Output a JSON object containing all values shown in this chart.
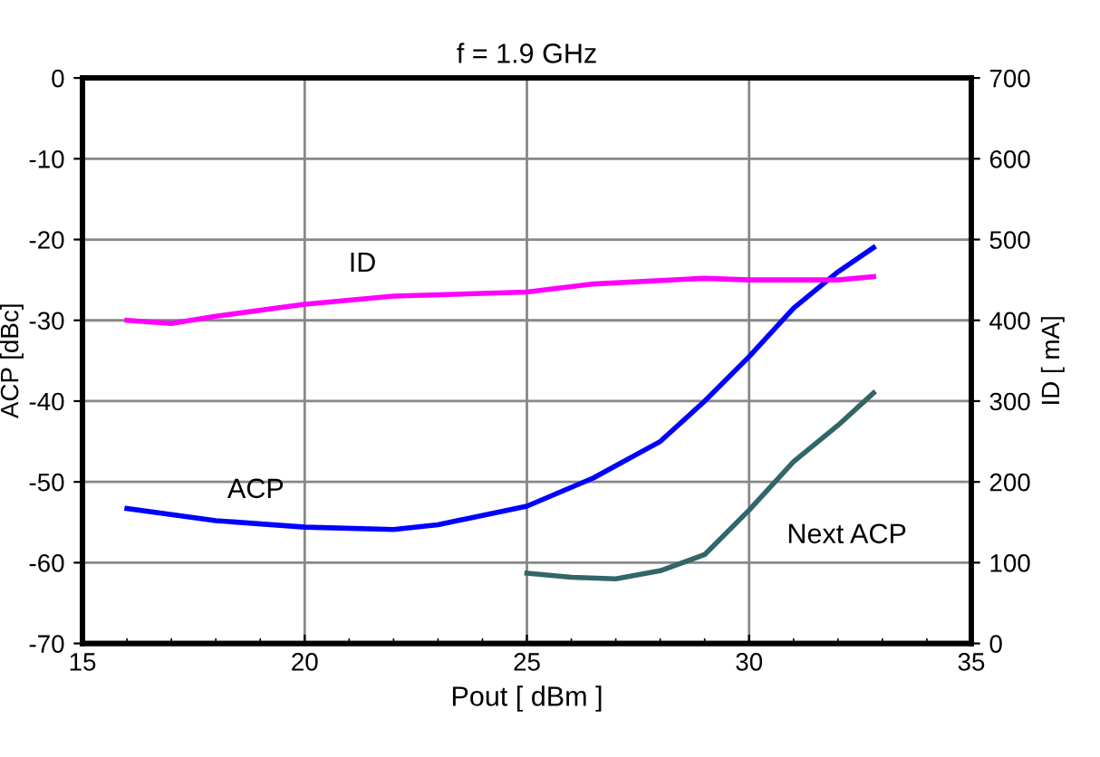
{
  "chart_data": {
    "type": "line",
    "title": "f = 1.9 GHz",
    "xlabel": "Pout [ dBm ]",
    "ylabel": "ACP [dBc]",
    "y2label": "ID [ mA]",
    "xlim": [
      15,
      35
    ],
    "xticks": [
      15,
      20,
      25,
      30,
      35
    ],
    "ylim": [
      -70,
      0
    ],
    "yticks": [
      -70,
      -60,
      -50,
      -40,
      -30,
      -20,
      -10,
      0
    ],
    "y2lim": [
      0,
      700
    ],
    "y2ticks": [
      0,
      100,
      200,
      300,
      400,
      500,
      600,
      700
    ],
    "grid": true,
    "series": [
      {
        "name": "ID",
        "color": "#ff00ff",
        "axis": "y2",
        "x": [
          16,
          17,
          18,
          20,
          22,
          25,
          26.5,
          29,
          30,
          32,
          32.8
        ],
        "values": [
          400,
          396,
          405,
          420,
          430,
          435,
          445,
          452,
          450,
          450,
          454
        ]
      },
      {
        "name": "ACP",
        "color": "#0000ff",
        "x": [
          16,
          18,
          20,
          22,
          23,
          25,
          26.5,
          28,
          29,
          30,
          31,
          32,
          32.8
        ],
        "values": [
          -53.3,
          -54.8,
          -55.6,
          -55.9,
          -55.3,
          -53,
          -49.5,
          -45,
          -40,
          -34.5,
          -28.5,
          -24,
          -21
        ]
      },
      {
        "name": "Next ACP",
        "color": "#336666",
        "x": [
          25,
          26,
          27,
          28,
          29,
          30,
          31,
          32,
          32.8
        ],
        "values": [
          -61.3,
          -61.8,
          -62,
          -61,
          -59,
          -53.5,
          -47.5,
          -43,
          -39
        ]
      }
    ]
  }
}
